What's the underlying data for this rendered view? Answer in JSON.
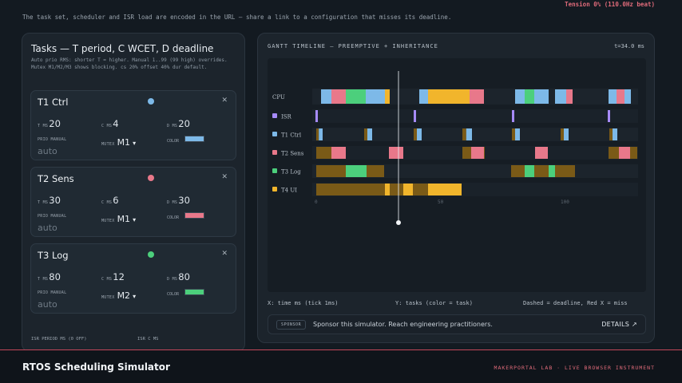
{
  "header": {
    "note": "The task set, scheduler and ISR load are encoded in the URL — share a link to a configuration that misses its deadline.",
    "tension": "Tension 0% (110.0Hz beat)"
  },
  "tasks_panel": {
    "title": "Tasks — T period, C WCET, D deadline",
    "description": "Auto prio RMS: shorter T = higher. Manual 1..99 (99 high) overrides. Mutex M1/M2/M3 shows blocking. cs 20% offset 40% dur default.",
    "labels": {
      "t": "T MS",
      "c": "C MS",
      "d": "D MS",
      "prio": "PRIO MANUAL",
      "mutex": "MUTEX",
      "color": "COLOR"
    },
    "tasks": [
      {
        "name": "T1 Ctrl",
        "t": "20",
        "c": "4",
        "d": "20",
        "prio": "auto",
        "mutex": "M1",
        "color": "#7db9e8"
      },
      {
        "name": "T2 Sens",
        "t": "30",
        "c": "6",
        "d": "30",
        "prio": "auto",
        "mutex": "M1",
        "color": "#e8788a"
      },
      {
        "name": "T3 Log",
        "t": "80",
        "c": "12",
        "d": "80",
        "prio": "auto",
        "mutex": "M2",
        "color": "#4ccf7c"
      }
    ],
    "isr_period_label": "ISR PERIOD MS (0 OFF)",
    "isr_c_label": "ISR C MS"
  },
  "gantt": {
    "title": "GANTT TIMELINE — PREEMPTIVE + INHERITANCE",
    "time": "t=34.0 ms",
    "rows": [
      "CPU",
      "ISR",
      "T1 Ctrl",
      "T2 Sens",
      "T3 Log",
      "T4 UI"
    ],
    "row_colors": [
      "#8a8f96",
      "#a78bfa",
      "#7db9e8",
      "#e8788a",
      "#4ccf7c",
      "#f1b52c"
    ],
    "ticks": [
      "0",
      "50",
      "100"
    ],
    "captions": {
      "x": "X: time ms (tick 1ms)",
      "y": "Y: tasks (color = task)",
      "legend": "Dashed = deadline, Red X = miss"
    }
  },
  "sponsor": {
    "badge": "SPONSOR",
    "text": "Sponsor this simulator. Reach engineering practitioners.",
    "details": "DETAILS ↗"
  },
  "footer": {
    "title": "RTOS Scheduling Simulator",
    "right": "MAKERPORTAL LAB · LIVE BROWSER INSTRUMENT"
  },
  "colors": {
    "isr": "#a78bfa",
    "t1": "#7db9e8",
    "t2": "#e8788a",
    "t3": "#4ccf7c",
    "t4": "#f1b52c",
    "blocked": "#7a5a17",
    "accent": "#e06b7a"
  }
}
